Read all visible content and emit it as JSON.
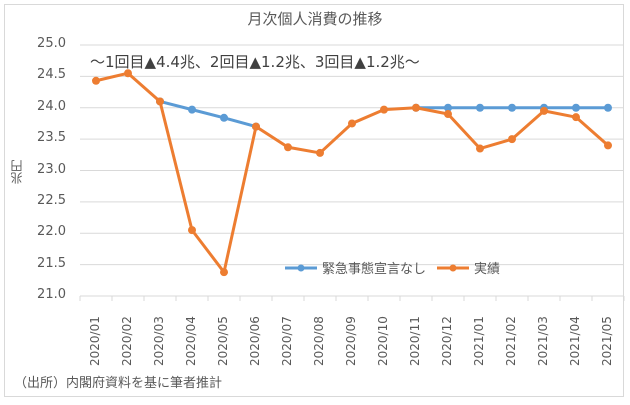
{
  "chart_data": {
    "type": "line",
    "title": "月次個人消費の推移",
    "subtitle": "～1回目▲4.4兆、2回目▲1.2兆、3回目▲1.2兆～",
    "xlabel": "",
    "ylabel": "兆円",
    "ylim": [
      21.0,
      25.0
    ],
    "yticks": [
      "25.0",
      "24.5",
      "24.0",
      "23.5",
      "23.0",
      "22.5",
      "22.0",
      "21.5",
      "21.0"
    ],
    "grid": true,
    "legend_position": "inside-bottom-right",
    "categories": [
      "2020/01",
      "2020/02",
      "2020/03",
      "2020/04",
      "2020/05",
      "2020/06",
      "2020/07",
      "2020/08",
      "2020/09",
      "2020/10",
      "2020/11",
      "2020/12",
      "2021/01",
      "2021/02",
      "2021/03",
      "2021/04",
      "2021/05"
    ],
    "series": [
      {
        "name": "緊急事態宣言なし",
        "color": "#5b9bd5",
        "values": [
          null,
          null,
          24.1,
          23.97,
          23.84,
          23.7,
          null,
          null,
          null,
          null,
          24.0,
          24.0,
          24.0,
          24.0,
          24.0,
          24.0,
          24.0
        ]
      },
      {
        "name": "実績",
        "color": "#ed7d31",
        "values": [
          24.43,
          24.55,
          24.1,
          22.05,
          21.38,
          23.7,
          23.37,
          23.28,
          23.75,
          23.97,
          24.0,
          23.9,
          23.35,
          23.5,
          23.95,
          23.85,
          23.4
        ]
      }
    ]
  },
  "footer": {
    "source": "（出所）内閣府資料を基に筆者推計"
  }
}
